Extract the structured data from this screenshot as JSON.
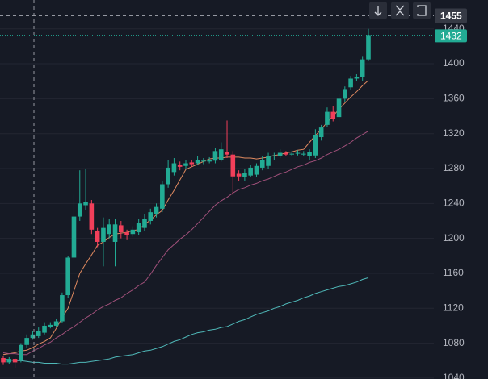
{
  "chart_data": {
    "type": "candlestick",
    "open": [
      1063,
      1058,
      1062,
      1061,
      1078,
      1086,
      1088,
      1092,
      1099,
      1100,
      1105,
      1135,
      1178,
      1225,
      1238,
      1240,
      1208,
      1196,
      1205,
      1196,
      1215,
      1207,
      1205,
      1207,
      1212,
      1220,
      1228,
      1234,
      1262,
      1276,
      1284,
      1283,
      1287,
      1286,
      1288,
      1288,
      1289,
      1290,
      1299,
      1296,
      1274,
      1270,
      1272,
      1273,
      1281,
      1283,
      1294,
      1294,
      1298,
      1296,
      1297,
      1296,
      1294,
      1295,
      1316,
      1330,
      1345,
      1339,
      1360,
      1373,
      1383,
      1385,
      1405
    ],
    "high": [
      1065,
      1064,
      1063,
      1080,
      1090,
      1094,
      1098,
      1104,
      1104,
      1108,
      1138,
      1180,
      1250,
      1278,
      1280,
      1244,
      1212,
      1224,
      1222,
      1222,
      1220,
      1210,
      1214,
      1222,
      1228,
      1234,
      1240,
      1266,
      1290,
      1292,
      1288,
      1290,
      1290,
      1294,
      1292,
      1293,
      1304,
      1310,
      1335,
      1300,
      1278,
      1280,
      1284,
      1286,
      1294,
      1298,
      1298,
      1302,
      1300,
      1300,
      1301,
      1300,
      1302,
      1325,
      1330,
      1350,
      1352,
      1366,
      1374,
      1386,
      1388,
      1408,
      1440
    ],
    "low": [
      1055,
      1056,
      1052,
      1058,
      1075,
      1084,
      1086,
      1090,
      1097,
      1098,
      1103,
      1132,
      1175,
      1220,
      1232,
      1205,
      1190,
      1168,
      1200,
      1168,
      1200,
      1198,
      1202,
      1204,
      1208,
      1216,
      1224,
      1230,
      1258,
      1272,
      1278,
      1280,
      1282,
      1284,
      1285,
      1286,
      1286,
      1288,
      1292,
      1250,
      1266,
      1266,
      1270,
      1270,
      1278,
      1280,
      1290,
      1292,
      1294,
      1294,
      1295,
      1294,
      1290,
      1292,
      1312,
      1328,
      1334,
      1334,
      1356,
      1370,
      1380,
      1380,
      1403
    ],
    "close": [
      1058,
      1062,
      1058,
      1078,
      1086,
      1090,
      1094,
      1100,
      1101,
      1105,
      1135,
      1178,
      1225,
      1240,
      1242,
      1210,
      1196,
      1212,
      1216,
      1216,
      1207,
      1204,
      1210,
      1218,
      1222,
      1230,
      1236,
      1262,
      1281,
      1286,
      1282,
      1286,
      1285,
      1290,
      1289,
      1290,
      1300,
      1302,
      1296,
      1271,
      1271,
      1275,
      1281,
      1283,
      1290,
      1294,
      1295,
      1298,
      1296,
      1297,
      1298,
      1297,
      1299,
      1318,
      1327,
      1345,
      1337,
      1360,
      1371,
      1383,
      1385,
      1405,
      1432
    ],
    "up_color": "#22ab94",
    "down_color": "#f23f5a",
    "series": [
      {
        "color": "#e08a60",
        "values": [
          1067,
          1068,
          1069,
          1071,
          1072,
          1075,
          1079,
          1082,
          1086,
          1097,
          1109,
          1120,
          1140,
          1160,
          1171,
          1181,
          1192,
          1196,
          1201,
          1205,
          1206,
          1207,
          1209,
          1210,
          1216,
          1221,
          1227,
          1232,
          1244,
          1255,
          1267,
          1279,
          1282,
          1285,
          1288,
          1291,
          1292,
          1292,
          1293,
          1293,
          1293,
          1292,
          1292,
          1291,
          1292,
          1293,
          1295,
          1296,
          1298,
          1299,
          1301,
          1302,
          1310,
          1318,
          1325,
          1333,
          1340,
          1348,
          1355,
          1362,
          1368,
          1375,
          1381
        ]
      },
      {
        "color": "#a0507a",
        "values": [
          1069,
          1068,
          1068,
          1067,
          1067,
          1071,
          1074,
          1078,
          1081,
          1086,
          1090,
          1095,
          1099,
          1104,
          1109,
          1113,
          1118,
          1122,
          1125,
          1129,
          1132,
          1137,
          1141,
          1146,
          1150,
          1159,
          1169,
          1178,
          1187,
          1193,
          1199,
          1204,
          1210,
          1217,
          1224,
          1231,
          1238,
          1243,
          1247,
          1252,
          1256,
          1258,
          1261,
          1263,
          1266,
          1268,
          1271,
          1274,
          1276,
          1279,
          1282,
          1284,
          1287,
          1289,
          1292,
          1296,
          1299,
          1302,
          1306,
          1310,
          1315,
          1319,
          1323
        ]
      },
      {
        "color": "#4fb8b8",
        "values": [
          1062,
          1061,
          1060,
          1060,
          1059,
          1058,
          1058,
          1057,
          1057,
          1057,
          1056,
          1056,
          1057,
          1058,
          1058,
          1059,
          1060,
          1061,
          1062,
          1064,
          1065,
          1066,
          1067,
          1069,
          1071,
          1072,
          1074,
          1076,
          1079,
          1082,
          1084,
          1087,
          1090,
          1092,
          1093,
          1095,
          1096,
          1098,
          1099,
          1102,
          1105,
          1107,
          1110,
          1113,
          1115,
          1117,
          1120,
          1122,
          1125,
          1127,
          1129,
          1132,
          1134,
          1137,
          1139,
          1141,
          1143,
          1145,
          1146,
          1148,
          1150,
          1153,
          1155
        ]
      }
    ],
    "ylim": [
      1039,
      1473
    ],
    "yticks": [
      1040,
      1080,
      1120,
      1160,
      1200,
      1240,
      1280,
      1320,
      1360,
      1400,
      1440
    ],
    "grid": true,
    "crosshair_price": 1455,
    "last_price": 1432
  }
}
